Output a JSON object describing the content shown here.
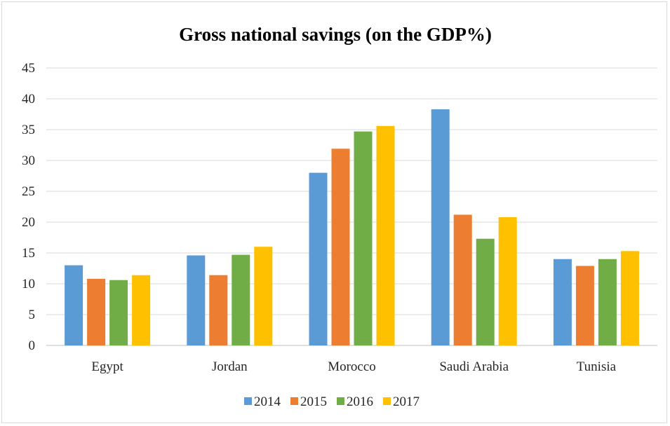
{
  "chart_data": {
    "type": "bar",
    "title": "Gross national savings (on the GDP%)",
    "xlabel": "",
    "ylabel": "",
    "categories": [
      "Egypt",
      "Jordan",
      "Morocco",
      "Saudi Arabia",
      "Tunisia"
    ],
    "series": [
      {
        "name": "2014",
        "color": "#5b9bd5",
        "values": [
          13.0,
          14.6,
          28.0,
          38.3,
          14.0
        ]
      },
      {
        "name": "2015",
        "color": "#ed7d31",
        "values": [
          10.8,
          11.4,
          31.9,
          21.2,
          12.9
        ]
      },
      {
        "name": "2016",
        "color": "#70ad47",
        "values": [
          10.6,
          14.7,
          34.7,
          17.3,
          14.0
        ]
      },
      {
        "name": "2017",
        "color": "#ffc000",
        "values": [
          11.4,
          16.0,
          35.6,
          20.8,
          15.3
        ]
      }
    ],
    "ylim": [
      0,
      45
    ],
    "yticks": [
      0,
      5,
      10,
      15,
      20,
      25,
      30,
      35,
      40,
      45
    ],
    "grid": true,
    "legend": "bottom-center"
  }
}
